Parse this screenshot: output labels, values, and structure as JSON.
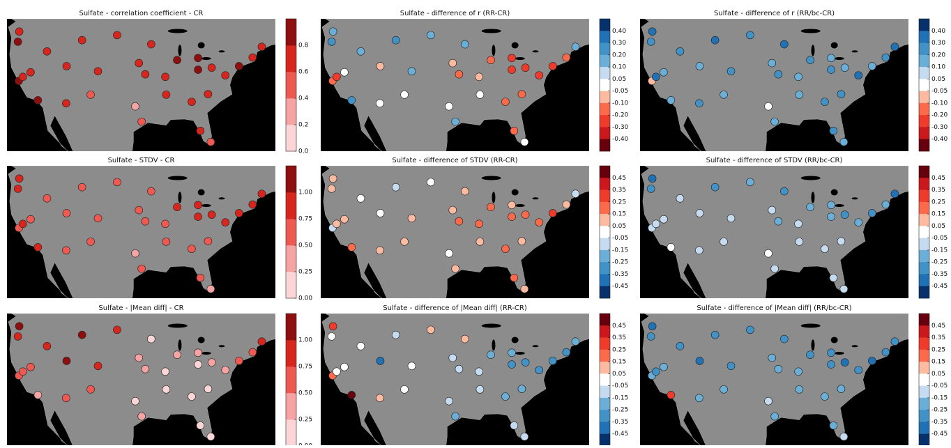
{
  "stations": [
    {
      "lon": -122.3,
      "lat": 47.5
    },
    {
      "lon": -122.6,
      "lat": 45.5
    },
    {
      "lon": -122.4,
      "lat": 37.8
    },
    {
      "lon": -118.2,
      "lat": 34.0
    },
    {
      "lon": -121.5,
      "lat": 38.6
    },
    {
      "lon": -116.2,
      "lat": 43.6
    },
    {
      "lon": -119.8,
      "lat": 39.5
    },
    {
      "lon": -112.0,
      "lat": 33.4
    },
    {
      "lon": -111.9,
      "lat": 40.7
    },
    {
      "lon": -105.0,
      "lat": 39.7
    },
    {
      "lon": -106.6,
      "lat": 35.1
    },
    {
      "lon": -108.5,
      "lat": 45.8
    },
    {
      "lon": -100.8,
      "lat": 46.8
    },
    {
      "lon": -96.0,
      "lat": 41.3
    },
    {
      "lon": -96.8,
      "lat": 32.8
    },
    {
      "lon": -95.4,
      "lat": 29.8
    },
    {
      "lon": -94.6,
      "lat": 39.1
    },
    {
      "lon": -93.3,
      "lat": 45.0
    },
    {
      "lon": -90.2,
      "lat": 38.6
    },
    {
      "lon": -87.6,
      "lat": 41.9
    },
    {
      "lon": -90.0,
      "lat": 35.1
    },
    {
      "lon": -84.4,
      "lat": 33.7
    },
    {
      "lon": -83.0,
      "lat": 42.3
    },
    {
      "lon": -83.0,
      "lat": 40.0
    },
    {
      "lon": -80.0,
      "lat": 40.4
    },
    {
      "lon": -80.8,
      "lat": 35.2
    },
    {
      "lon": -77.0,
      "lat": 38.9
    },
    {
      "lon": -74.0,
      "lat": 40.7
    },
    {
      "lon": -71.0,
      "lat": 42.4
    },
    {
      "lon": -80.2,
      "lat": 25.8
    },
    {
      "lon": -82.5,
      "lat": 28.0
    },
    {
      "lon": -69.0,
      "lat": 44.5
    }
  ],
  "panels": [
    {
      "title": "Sulfate - correlation coefficient - CR",
      "colorbar": {
        "kind": "linear",
        "lim": [
          0,
          1
        ],
        "ticks": [
          {
            "value": 0,
            "label": "0.0"
          },
          0.2,
          0.4,
          0.6,
          0.8
        ],
        "colors": [
          "#fcd6d6",
          "#f5a3a3",
          "#ee5a52",
          "#d7261e",
          "#8e0f0f"
        ]
      },
      "values": [
        0.75,
        0.8,
        0.85,
        0.8,
        0.7,
        0.6,
        0.7,
        0.7,
        0.65,
        0.6,
        0.55,
        0.65,
        0.6,
        0.7,
        0.3,
        0.5,
        0.7,
        0.75,
        0.75,
        0.8,
        0.7,
        0.75,
        0.8,
        0.8,
        0.75,
        0.7,
        0.75,
        0.8,
        0.7,
        0.5,
        0.65,
        0.7
      ]
    },
    {
      "title": "Sulfate - difference of r (RR-CR)",
      "colorbar": {
        "kind": "discrete",
        "ticks": [
          {
            "value": 0.4,
            "label": "0.40"
          },
          {
            "value": 0.3,
            "label": "0.30"
          },
          {
            "value": 0.2,
            "label": "0.20"
          },
          {
            "value": 0.1,
            "label": "0.10"
          },
          {
            "value": 0.05,
            "label": "0.05"
          },
          {
            "value": -0.05,
            "label": "-0.05"
          },
          {
            "value": -0.1,
            "label": "-0.10"
          },
          {
            "value": -0.2,
            "label": "-0.20"
          },
          {
            "value": -0.3,
            "label": "-0.30"
          },
          {
            "value": -0.4,
            "label": "-0.40"
          }
        ],
        "colors": [
          "#08306b",
          "#2171b5",
          "#4292c6",
          "#6baed6",
          "#c6dbef",
          "#ffffff",
          "#fcbba1",
          "#fb6a4a",
          "#ef3b2c",
          "#cb181d",
          "#67000d"
        ]
      },
      "values": [
        0.15,
        0.25,
        -0.15,
        0.2,
        -0.25,
        0.12,
        0.0,
        0.0,
        -0.07,
        0.12,
        0.0,
        0.25,
        0.15,
        -0.07,
        0.0,
        0.12,
        -0.15,
        0.12,
        -0.07,
        -0.15,
        0.0,
        -0.15,
        -0.25,
        -0.25,
        -0.25,
        -0.15,
        -0.25,
        -0.25,
        -0.15,
        0.0,
        -0.15,
        0.12
      ]
    },
    {
      "title": "Sulfate - difference of r (RR/bc-CR)",
      "colorbar": {
        "kind": "discrete",
        "ticks": [
          {
            "value": 0.4,
            "label": "0.40"
          },
          {
            "value": 0.3,
            "label": "0.30"
          },
          {
            "value": 0.2,
            "label": "0.20"
          },
          {
            "value": 0.1,
            "label": "0.10"
          },
          {
            "value": 0.05,
            "label": "0.05"
          },
          {
            "value": -0.05,
            "label": "-0.05"
          },
          {
            "value": -0.1,
            "label": "-0.10"
          },
          {
            "value": -0.2,
            "label": "-0.20"
          },
          {
            "value": -0.3,
            "label": "-0.30"
          },
          {
            "value": -0.4,
            "label": "-0.40"
          }
        ],
        "colors": [
          "#08306b",
          "#2171b5",
          "#4292c6",
          "#6baed6",
          "#c6dbef",
          "#ffffff",
          "#fcbba1",
          "#fb6a4a",
          "#ef3b2c",
          "#cb181d",
          "#67000d"
        ]
      },
      "values": [
        0.35,
        0.25,
        -0.07,
        0.15,
        0.35,
        0.25,
        0.15,
        0.25,
        0.15,
        0.25,
        0.15,
        0.35,
        0.25,
        0.15,
        0.0,
        0.15,
        0.25,
        0.35,
        0.15,
        0.25,
        0.15,
        0.25,
        0.15,
        0.25,
        0.15,
        0.25,
        0.35,
        0.15,
        0.25,
        0.15,
        0.25,
        0.35
      ]
    },
    {
      "title": "Sulfate - STDV - CR",
      "colorbar": {
        "kind": "linear",
        "lim": [
          0,
          1.25
        ],
        "ticks": [
          {
            "value": 0,
            "label": "0.00"
          },
          {
            "value": 0.25,
            "label": "0.25"
          },
          {
            "value": 0.5,
            "label": "0.50"
          },
          {
            "value": 0.75,
            "label": "0.75"
          },
          {
            "value": 1,
            "label": "1.00"
          }
        ],
        "colors": [
          "#fcd6d6",
          "#f5a3a3",
          "#ee5a52",
          "#d7261e",
          "#8e0f0f"
        ]
      },
      "values": [
        0.8,
        0.8,
        0.7,
        0.8,
        0.75,
        0.6,
        0.55,
        0.6,
        0.55,
        0.6,
        0.55,
        0.6,
        0.6,
        0.65,
        0.45,
        0.55,
        0.65,
        0.7,
        0.7,
        0.8,
        0.6,
        0.7,
        0.8,
        0.8,
        0.8,
        0.7,
        0.8,
        0.85,
        0.8,
        0.45,
        0.6,
        0.8
      ]
    },
    {
      "title": "Sulfate - difference of STDV (RR-CR)",
      "colorbar": {
        "kind": "discrete",
        "ticks": [
          {
            "value": 0.45,
            "label": "0.45"
          },
          {
            "value": 0.35,
            "label": "0.35"
          },
          {
            "value": 0.25,
            "label": "0.25"
          },
          {
            "value": 0.15,
            "label": "0.15"
          },
          {
            "value": 0.05,
            "label": "0.05"
          },
          {
            "value": -0.05,
            "label": "-0.05"
          },
          {
            "value": -0.15,
            "label": "-0.15"
          },
          {
            "value": -0.25,
            "label": "-0.25"
          },
          {
            "value": -0.35,
            "label": "-0.35"
          },
          {
            "value": -0.45,
            "label": "-0.45"
          }
        ],
        "colors": [
          "#67000d",
          "#cb181d",
          "#ef3b2c",
          "#fb6a4a",
          "#fcbba1",
          "#ffffff",
          "#c6dbef",
          "#6baed6",
          "#4292c6",
          "#2171b5",
          "#08306b"
        ]
      },
      "values": [
        0.1,
        0.1,
        -0.1,
        0.2,
        0.1,
        0.0,
        0.1,
        0.1,
        0.0,
        0.1,
        0.1,
        -0.1,
        0.0,
        0.1,
        0.0,
        0.1,
        0.2,
        0.1,
        0.2,
        0.2,
        0.1,
        0.2,
        0.1,
        0.2,
        0.2,
        0.1,
        0.2,
        0.3,
        0.1,
        0.1,
        0.2,
        -0.1
      ]
    },
    {
      "title": "Sulfate - difference of STDV (RR/bc-CR)",
      "colorbar": {
        "kind": "discrete",
        "ticks": [
          {
            "value": 0.45,
            "label": "0.45"
          },
          {
            "value": 0.35,
            "label": "0.35"
          },
          {
            "value": 0.25,
            "label": "0.25"
          },
          {
            "value": 0.15,
            "label": "0.15"
          },
          {
            "value": 0.05,
            "label": "0.05"
          },
          {
            "value": -0.05,
            "label": "-0.05"
          },
          {
            "value": -0.15,
            "label": "-0.15"
          },
          {
            "value": -0.25,
            "label": "-0.25"
          },
          {
            "value": -0.35,
            "label": "-0.35"
          },
          {
            "value": -0.45,
            "label": "-0.45"
          }
        ],
        "colors": [
          "#67000d",
          "#cb181d",
          "#ef3b2c",
          "#fb6a4a",
          "#fcbba1",
          "#ffffff",
          "#c6dbef",
          "#6baed6",
          "#4292c6",
          "#2171b5",
          "#08306b"
        ]
      },
      "values": [
        -0.4,
        -0.3,
        -0.1,
        0.0,
        -0.1,
        -0.1,
        -0.1,
        -0.1,
        -0.1,
        -0.1,
        -0.1,
        -0.3,
        -0.2,
        -0.1,
        0.0,
        -0.1,
        -0.2,
        -0.3,
        -0.1,
        -0.2,
        -0.1,
        -0.1,
        -0.2,
        -0.2,
        -0.3,
        -0.1,
        -0.2,
        -0.3,
        -0.2,
        -0.1,
        -0.1,
        -0.4
      ]
    },
    {
      "title": "Sulfate - |Mean diff| - CR",
      "colorbar": {
        "kind": "linear",
        "lim": [
          0,
          1.25
        ],
        "ticks": [
          {
            "value": 0,
            "label": "0.00"
          },
          {
            "value": 0.25,
            "label": "0.25"
          },
          {
            "value": 0.5,
            "label": "0.50"
          },
          {
            "value": 0.75,
            "label": "0.75"
          },
          {
            "value": 1,
            "label": "1.00"
          }
        ],
        "colors": [
          "#fcd6d6",
          "#f5a3a3",
          "#ee5a52",
          "#d7261e",
          "#8e0f0f"
        ]
      },
      "values": [
        1.1,
        0.8,
        0.6,
        0.4,
        0.6,
        0.8,
        0.7,
        0.5,
        1.1,
        0.8,
        0.6,
        1.0,
        0.8,
        0.3,
        0.2,
        0.3,
        0.3,
        0.2,
        0.2,
        0.3,
        0.2,
        0.2,
        0.3,
        0.2,
        0.3,
        0.2,
        0.3,
        0.6,
        0.7,
        0.2,
        0.2,
        0.8
      ]
    },
    {
      "title": "Sulfate - difference of |Mean diff| (RR-CR)",
      "colorbar": {
        "kind": "discrete",
        "ticks": [
          {
            "value": 0.45,
            "label": "0.45"
          },
          {
            "value": 0.35,
            "label": "0.35"
          },
          {
            "value": 0.25,
            "label": "0.25"
          },
          {
            "value": 0.15,
            "label": "0.15"
          },
          {
            "value": 0.05,
            "label": "0.05"
          },
          {
            "value": -0.05,
            "label": "-0.05"
          },
          {
            "value": -0.15,
            "label": "-0.15"
          },
          {
            "value": -0.25,
            "label": "-0.25"
          },
          {
            "value": -0.35,
            "label": "-0.35"
          },
          {
            "value": -0.45,
            "label": "-0.45"
          }
        ],
        "colors": [
          "#67000d",
          "#cb181d",
          "#ef3b2c",
          "#fb6a4a",
          "#fcbba1",
          "#ffffff",
          "#c6dbef",
          "#6baed6",
          "#4292c6",
          "#2171b5",
          "#08306b"
        ]
      },
      "values": [
        0.3,
        0.0,
        0.2,
        0.5,
        0.0,
        0.0,
        0.0,
        0.1,
        -0.4,
        0.0,
        0.0,
        -0.1,
        0.1,
        -0.1,
        -0.1,
        -0.2,
        -0.1,
        0.1,
        -0.1,
        -0.2,
        -0.1,
        -0.2,
        -0.2,
        -0.3,
        -0.3,
        -0.2,
        -0.3,
        -0.3,
        -0.3,
        -0.1,
        -0.1,
        -0.2
      ]
    },
    {
      "title": "Sulfate - difference of |Mean diff| (RR/bc-CR)",
      "colorbar": {
        "kind": "discrete",
        "ticks": [
          {
            "value": 0.45,
            "label": "0.45"
          },
          {
            "value": 0.35,
            "label": "0.35"
          },
          {
            "value": 0.25,
            "label": "0.25"
          },
          {
            "value": 0.15,
            "label": "0.15"
          },
          {
            "value": 0.05,
            "label": "0.05"
          },
          {
            "value": -0.05,
            "label": "-0.05"
          },
          {
            "value": -0.15,
            "label": "-0.15"
          },
          {
            "value": -0.25,
            "label": "-0.25"
          },
          {
            "value": -0.35,
            "label": "-0.35"
          },
          {
            "value": -0.45,
            "label": "-0.45"
          }
        ],
        "colors": [
          "#67000d",
          "#cb181d",
          "#ef3b2c",
          "#fb6a4a",
          "#fcbba1",
          "#ffffff",
          "#c6dbef",
          "#6baed6",
          "#4292c6",
          "#2171b5",
          "#08306b"
        ]
      },
      "values": [
        -0.4,
        -0.3,
        -0.2,
        0.3,
        -0.3,
        -0.3,
        -0.2,
        -0.2,
        -0.4,
        -0.3,
        -0.2,
        -0.3,
        -0.3,
        -0.2,
        -0.1,
        -0.2,
        -0.2,
        -0.3,
        -0.2,
        -0.3,
        -0.2,
        -0.2,
        -0.3,
        -0.3,
        -0.4,
        -0.2,
        -0.3,
        -0.4,
        -0.3,
        -0.1,
        -0.2,
        -0.3
      ]
    }
  ]
}
